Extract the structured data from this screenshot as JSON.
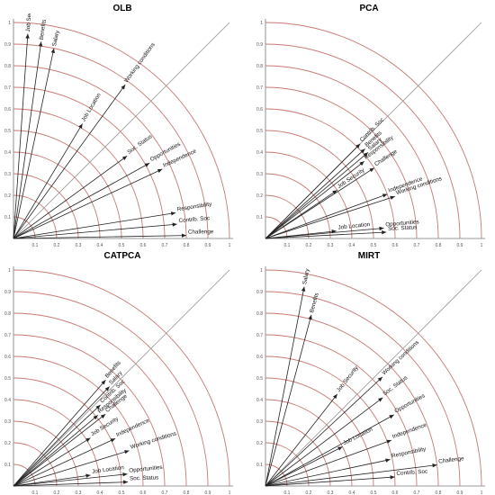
{
  "charts": [
    {
      "title": "OLB",
      "chart_data": {
        "type": "scatter",
        "title": "OLB",
        "xlabel": "",
        "ylabel": "",
        "xlim": [
          0,
          1
        ],
        "ylim": [
          0,
          1
        ],
        "grid": "concentric arcs",
        "radial_ticks": [
          "0.1",
          "0.2",
          "0.3",
          "0.4",
          "0.5",
          "0.6",
          "0.7",
          "0.8",
          "0.9",
          "1"
        ],
        "vectors": [
          {
            "name": "Job Security",
            "angle": 86,
            "length": 0.95
          },
          {
            "name": "Benefits",
            "angle": 82,
            "length": 0.92
          },
          {
            "name": "Salary",
            "angle": 78,
            "length": 0.9
          },
          {
            "name": "Job Location",
            "angle": 59,
            "length": 0.62
          },
          {
            "name": "Working conditions",
            "angle": 54,
            "length": 0.88
          },
          {
            "name": "Soc. Status",
            "angle": 36,
            "length": 0.65
          },
          {
            "name": "Opportunities",
            "angle": 29,
            "length": 0.72
          },
          {
            "name": "Independence",
            "angle": 25,
            "length": 0.76
          },
          {
            "name": "Responsibility",
            "angle": 9,
            "length": 0.76
          },
          {
            "name": "Contrib. Soc",
            "angle": 5,
            "length": 0.76
          },
          {
            "name": "Challenge",
            "angle": 1,
            "length": 0.8
          }
        ]
      }
    },
    {
      "title": "PCA",
      "chart_data": {
        "type": "scatter",
        "title": "PCA",
        "xlabel": "",
        "ylabel": "",
        "xlim": [
          0,
          1
        ],
        "ylim": [
          0,
          1
        ],
        "grid": "concentric arcs",
        "radial_ticks": [
          "0.1",
          "0.2",
          "0.3",
          "0.4",
          "0.5",
          "0.6",
          "0.7",
          "0.8",
          "0.9",
          "1"
        ],
        "vectors": [
          {
            "name": "Contrib. Soc",
            "angle": 45,
            "length": 0.62
          },
          {
            "name": "Benefits",
            "angle": 42,
            "length": 0.62
          },
          {
            "name": "Salary",
            "angle": 40,
            "length": 0.62
          },
          {
            "name": "Responsibility",
            "angle": 38,
            "length": 0.58
          },
          {
            "name": "Challenge",
            "angle": 33,
            "length": 0.6
          },
          {
            "name": "Job Security",
            "angle": 34,
            "length": 0.4
          },
          {
            "name": "Independence",
            "angle": 20,
            "length": 0.6
          },
          {
            "name": "Working conditions",
            "angle": 18,
            "length": 0.63
          },
          {
            "name": "Job Location",
            "angle": 6,
            "length": 0.33
          },
          {
            "name": "Opportunities",
            "angle": 5,
            "length": 0.55
          },
          {
            "name": "Soc. Status",
            "angle": 3,
            "length": 0.56
          }
        ]
      }
    },
    {
      "title": "CATPCA",
      "chart_data": {
        "type": "scatter",
        "title": "CATPCA",
        "xlabel": "",
        "ylabel": "",
        "xlim": [
          0,
          1
        ],
        "ylim": [
          0,
          1
        ],
        "grid": "concentric arcs",
        "radial_ticks": [
          "0.1",
          "0.2",
          "0.3",
          "0.4",
          "0.5",
          "0.6",
          "0.7",
          "0.8",
          "0.9",
          "1"
        ],
        "vectors": [
          {
            "name": "Benefits",
            "angle": 49,
            "length": 0.65
          },
          {
            "name": "Salary",
            "angle": 46,
            "length": 0.64
          },
          {
            "name": "Contrib. Soc",
            "angle": 43,
            "length": 0.55
          },
          {
            "name": "Responsibility",
            "angle": 40,
            "length": 0.51
          },
          {
            "name": "Challenge",
            "angle": 38,
            "length": 0.54
          },
          {
            "name": "Job Security",
            "angle": 32,
            "length": 0.42
          },
          {
            "name": "Independence",
            "angle": 25,
            "length": 0.52
          },
          {
            "name": "Working conditions",
            "angle": 17,
            "length": 0.56
          },
          {
            "name": "Job Location",
            "angle": 8,
            "length": 0.36
          },
          {
            "name": "Opportunities",
            "angle": 6,
            "length": 0.53
          },
          {
            "name": "Soc. Status",
            "angle": 2,
            "length": 0.53
          }
        ]
      }
    },
    {
      "title": "MIRT",
      "chart_data": {
        "type": "scatter",
        "title": "MIRT",
        "xlabel": "",
        "ylabel": "",
        "xlim": [
          0,
          1
        ],
        "ylim": [
          0,
          1
        ],
        "grid": "concentric arcs",
        "radial_ticks": [
          "0.1",
          "0.2",
          "0.3",
          "0.4",
          "0.5",
          "0.6",
          "0.7",
          "0.8",
          "0.9",
          "1"
        ],
        "vectors": [
          {
            "name": "Salary",
            "angle": 79,
            "length": 0.94
          },
          {
            "name": "Benefits",
            "angle": 75,
            "length": 0.82
          },
          {
            "name": "Job Security",
            "angle": 52,
            "length": 0.54
          },
          {
            "name": "Working conditions",
            "angle": 43,
            "length": 0.74
          },
          {
            "name": "Soc. Status",
            "angle": 37,
            "length": 0.68
          },
          {
            "name": "Opportunities",
            "angle": 29,
            "length": 0.68
          },
          {
            "name": "Job Location",
            "angle": 27,
            "length": 0.4
          },
          {
            "name": "Independence",
            "angle": 20,
            "length": 0.62
          },
          {
            "name": "Responsibility",
            "angle": 12,
            "length": 0.59
          },
          {
            "name": "Challenge",
            "angle": 7,
            "length": 0.8
          },
          {
            "name": "Contrib. Soc",
            "angle": 4,
            "length": 0.6
          }
        ]
      }
    }
  ],
  "colors": {
    "arc": "#c97a74",
    "axis": "#777777",
    "arrow": "#222222",
    "diag": "#999999"
  }
}
